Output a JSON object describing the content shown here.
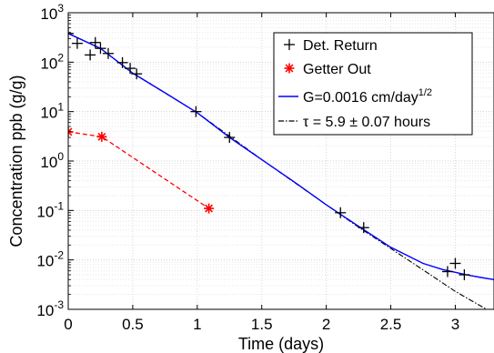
{
  "chart_data": {
    "type": "scatter",
    "xlabel": "Time (days)",
    "ylabel": "Concentration ppb (g/g)",
    "xlim": [
      0,
      3.3
    ],
    "ylim": [
      0.001,
      1000
    ],
    "y_scale": "log",
    "grid": true,
    "legend_placement": "top-right",
    "x_ticks": [
      "0",
      "0.5",
      "1",
      "1.5",
      "2",
      "2.5",
      "3"
    ],
    "y_tick_exponents": [
      "-3",
      "-2",
      "-1",
      "0",
      "1",
      "2",
      "3"
    ],
    "legend": [
      {
        "label": "Det. Return"
      },
      {
        "label": "Getter Out"
      },
      {
        "label": "G=0.0016 cm/day",
        "superscript": "1/2"
      },
      {
        "label": "τ = 5.9 ± 0.07 hours"
      }
    ],
    "series": [
      {
        "name": "Det. Return",
        "marker": "+",
        "color": "#000000",
        "x": [
          0.0,
          0.07,
          0.17,
          0.21,
          0.25,
          0.31,
          0.42,
          0.48,
          0.53,
          0.99,
          1.25,
          2.11,
          2.29,
          2.94,
          3.0,
          3.07
        ],
        "y": [
          380,
          240,
          140,
          250,
          190,
          150,
          98,
          75,
          58,
          10,
          3.0,
          0.09,
          0.045,
          0.0058,
          0.0085,
          0.005
        ]
      },
      {
        "name": "Getter Out",
        "marker": "*",
        "line": "dashed",
        "color": "#ff0000",
        "x": [
          0.0,
          0.26,
          1.09
        ],
        "y": [
          3.9,
          3.1,
          0.11
        ]
      },
      {
        "name": "G=0.0016 cm/day^1/2",
        "line": "solid",
        "color": "#0000ff",
        "x": [
          0.0,
          0.25,
          0.5,
          0.75,
          1.0,
          1.25,
          1.5,
          1.75,
          2.0,
          2.25,
          2.5,
          2.75,
          2.9,
          3.0,
          3.1,
          3.2,
          3.3
        ],
        "y": [
          380,
          190,
          60,
          24,
          9.5,
          3.0,
          1.07,
          0.38,
          0.13,
          0.048,
          0.018,
          0.0085,
          0.0064,
          0.0056,
          0.0049,
          0.0044,
          0.004
        ]
      },
      {
        "name": "τ = 5.9 ± 0.07 hours",
        "line": "dashdot",
        "color": "#000000",
        "x": [
          0.0,
          0.25,
          0.5,
          1.0,
          1.5,
          2.0,
          2.25,
          2.5,
          2.75,
          3.0,
          3.3
        ],
        "y": [
          380,
          190,
          60,
          9.5,
          1.07,
          0.13,
          0.046,
          0.017,
          0.0063,
          0.0023,
          0.00082
        ]
      }
    ]
  }
}
